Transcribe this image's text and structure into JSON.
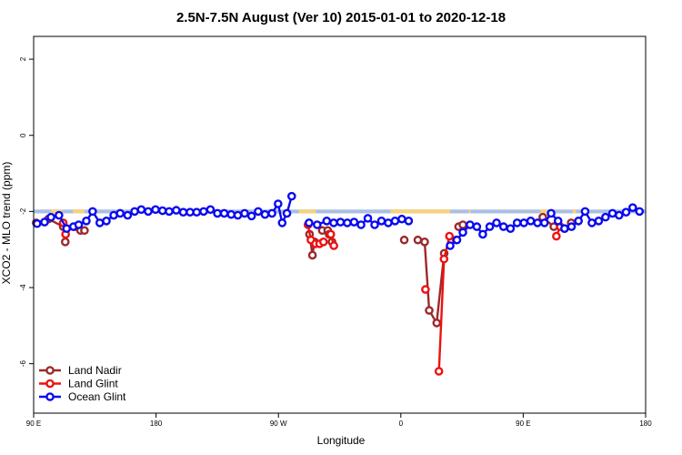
{
  "chart_data": {
    "type": "line",
    "title": "2.5N-7.5N August (Ver 10)   2015-01-01 to 2020-12-18",
    "xlabel": "Longitude",
    "ylabel": "XCO2 - MLO trend (ppm)",
    "xlim": [
      -90,
      270
    ],
    "ylim": [
      -7.3,
      2.6
    ],
    "x_ticks": [
      {
        "value": -90,
        "label": "90 E"
      },
      {
        "value": -18,
        "label": "180"
      },
      {
        "value": 54,
        "label": "90 W"
      },
      {
        "value": 126,
        "label": "0"
      },
      {
        "value": 198,
        "label": "90 E"
      },
      {
        "value": 270,
        "label": "180"
      }
    ],
    "y_ticks": [
      {
        "value": 2,
        "label": "2"
      },
      {
        "value": 0,
        "label": "0"
      },
      {
        "value": -2,
        "label": "-2"
      },
      {
        "value": -4,
        "label": "-4"
      },
      {
        "value": -6,
        "label": "-6"
      }
    ],
    "land_mask": {
      "baseline": -2.05,
      "top": -1.95,
      "ocean_color": "#a9bfe3",
      "land_color": "#f7d27a",
      "land_segments": [
        [
          -80,
          -73
        ],
        [
          -67,
          -60
        ],
        [
          -23,
          -20
        ],
        [
          66,
          76
        ],
        [
          120,
          155
        ],
        [
          166,
          167
        ],
        [
          208,
          212
        ],
        [
          227,
          229
        ]
      ]
    },
    "series": [
      {
        "name": "Land Nadir",
        "color": "#9b2a2a",
        "segments": [
          [
            [
              -88.5,
              -2.3
            ],
            [
              -81.3,
              -2.2
            ],
            [
              -72.6,
              -2.4
            ],
            [
              -71.4,
              -2.8
            ]
          ],
          [
            [
              -65.3,
              -2.4
            ],
            [
              -62.4,
              -2.5
            ]
          ],
          [
            [
              -60.1,
              -2.5
            ]
          ],
          [
            [
              72.3,
              -2.6
            ],
            [
              74.0,
              -3.15
            ],
            [
              75.2,
              -2.8
            ]
          ],
          [
            [
              79.8,
              -2.5
            ],
            [
              83.0,
              -2.5
            ],
            [
              83.8,
              -2.6
            ],
            [
              85.5,
              -2.8
            ]
          ],
          [
            [
              128.0,
              -2.75
            ]
          ],
          [
            [
              136.0,
              -2.75
            ],
            [
              140.0,
              -2.8
            ],
            [
              142.7,
              -4.6
            ],
            [
              147.1,
              -4.93
            ],
            [
              151.5,
              -3.1
            ]
          ],
          [
            [
              160.0,
              -2.4
            ],
            [
              162.5,
              -2.35
            ]
          ],
          [
            [
              209.5,
              -2.15
            ],
            [
              216.0,
              -2.4
            ]
          ],
          [
            [
              222.3,
              -2.45
            ],
            [
              226.2,
              -2.3
            ]
          ]
        ]
      },
      {
        "name": "Land Glint",
        "color": "#ee1111",
        "segments": [
          [
            [
              -72.6,
              -2.3
            ],
            [
              -71.2,
              -2.6
            ]
          ],
          [
            [
              71.4,
              -2.35
            ],
            [
              73.1,
              -2.75
            ],
            [
              75.8,
              -2.85
            ],
            [
              78.2,
              -2.85
            ],
            [
              80.5,
              -2.8
            ]
          ],
          [
            [
              84.8,
              -2.6
            ],
            [
              86.6,
              -2.9
            ]
          ],
          [
            [
              140.5,
              -4.05
            ]
          ],
          [
            [
              148.4,
              -6.2
            ],
            [
              151.4,
              -3.25
            ],
            [
              154.6,
              -2.65
            ],
            [
              158.6,
              -2.75
            ]
          ],
          [
            [
              217.5,
              -2.65
            ],
            [
              219.8,
              -2.4
            ]
          ]
        ]
      },
      {
        "name": "Ocean Glint",
        "color": "#0a0af0",
        "segments": [
          [
            [
              -88.0,
              -2.32
            ],
            [
              -83.6,
              -2.28
            ],
            [
              -79.8,
              -2.15
            ],
            [
              -75.1,
              -2.1
            ],
            [
              -70.6,
              -2.45
            ],
            [
              -66.6,
              -2.4
            ],
            [
              -63.5,
              -2.35
            ],
            [
              -59.0,
              -2.25
            ],
            [
              -55.3,
              -2.0
            ],
            [
              -51.1,
              -2.3
            ],
            [
              -47.2,
              -2.25
            ],
            [
              -42.9,
              -2.1
            ],
            [
              -39.1,
              -2.05
            ],
            [
              -34.7,
              -2.1
            ],
            [
              -30.6,
              -2.0
            ],
            [
              -26.7,
              -1.95
            ],
            [
              -22.6,
              -2.0
            ],
            [
              -18.3,
              -1.95
            ],
            [
              -14.2,
              -1.98
            ],
            [
              -10.3,
              -2.0
            ],
            [
              -6.1,
              -1.97
            ],
            [
              -2.0,
              -2.02
            ],
            [
              2.0,
              -2.02
            ],
            [
              5.9,
              -2.02
            ],
            [
              10.0,
              -2.0
            ],
            [
              14.0,
              -1.95
            ],
            [
              18.1,
              -2.05
            ],
            [
              22.1,
              -2.05
            ],
            [
              26.2,
              -2.08
            ],
            [
              30.1,
              -2.1
            ],
            [
              34.1,
              -2.05
            ],
            [
              38.2,
              -2.12
            ],
            [
              42.1,
              -2.0
            ],
            [
              46.1,
              -2.08
            ],
            [
              50.2,
              -2.05
            ],
            [
              53.8,
              -1.8
            ],
            [
              56.2,
              -2.3
            ],
            [
              59.0,
              -2.05
            ],
            [
              61.8,
              -1.6
            ]
          ],
          [
            [
              72.0,
              -2.3
            ],
            [
              76.8,
              -2.35
            ],
            [
              82.4,
              -2.25
            ],
            [
              86.5,
              -2.3
            ],
            [
              90.5,
              -2.28
            ],
            [
              94.5,
              -2.3
            ],
            [
              98.5,
              -2.28
            ],
            [
              102.6,
              -2.35
            ],
            [
              106.6,
              -2.18
            ],
            [
              110.6,
              -2.35
            ],
            [
              114.6,
              -2.25
            ],
            [
              118.6,
              -2.3
            ],
            [
              122.6,
              -2.25
            ],
            [
              126.6,
              -2.2
            ],
            [
              130.6,
              -2.25
            ]
          ],
          [
            [
              155.0,
              -2.9
            ],
            [
              159.0,
              -2.75
            ],
            [
              162.5,
              -2.55
            ],
            [
              166.7,
              -2.35
            ],
            [
              170.7,
              -2.4
            ],
            [
              174.2,
              -2.6
            ],
            [
              178.3,
              -2.4
            ],
            [
              182.3,
              -2.3
            ],
            [
              186.4,
              -2.4
            ],
            [
              190.5,
              -2.45
            ],
            [
              194.4,
              -2.3
            ],
            [
              198.4,
              -2.3
            ],
            [
              202.4,
              -2.25
            ],
            [
              206.4,
              -2.3
            ],
            [
              210.5,
              -2.3
            ],
            [
              214.4,
              -2.05
            ],
            [
              218.5,
              -2.25
            ],
            [
              222.3,
              -2.45
            ],
            [
              226.4,
              -2.4
            ],
            [
              230.5,
              -2.25
            ],
            [
              234.4,
              -2.0
            ],
            [
              238.4,
              -2.3
            ],
            [
              242.4,
              -2.25
            ],
            [
              246.4,
              -2.15
            ],
            [
              250.5,
              -2.05
            ],
            [
              254.4,
              -2.1
            ],
            [
              258.5,
              -2.02
            ],
            [
              262.4,
              -1.9
            ],
            [
              266.4,
              -2.0
            ]
          ]
        ]
      }
    ],
    "legend": {
      "position": "bottom-left",
      "entries": [
        "Land Nadir",
        "Land Glint",
        "Ocean Glint"
      ]
    }
  }
}
